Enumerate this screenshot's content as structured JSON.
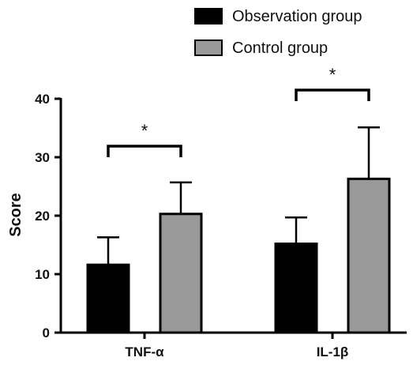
{
  "chart_data": {
    "type": "bar",
    "categories": [
      "TNF-α",
      "IL-1β"
    ],
    "series": [
      {
        "name": "Observation group",
        "color": "#000000",
        "values": [
          11.6,
          15.2
        ],
        "error": [
          4.7,
          4.5
        ]
      },
      {
        "name": "Control group",
        "color": "#999999",
        "values": [
          20.3,
          26.3
        ],
        "error": [
          5.4,
          8.8
        ]
      }
    ],
    "xlabel": "",
    "ylabel": "Score",
    "ylim": [
      0,
      40
    ],
    "yticks": [
      0,
      10,
      20,
      30,
      40
    ],
    "grid": false,
    "legend_position": "top-right",
    "significance": [
      {
        "category": "TNF-α",
        "label": "*"
      },
      {
        "category": "IL-1β",
        "label": "*"
      }
    ]
  }
}
